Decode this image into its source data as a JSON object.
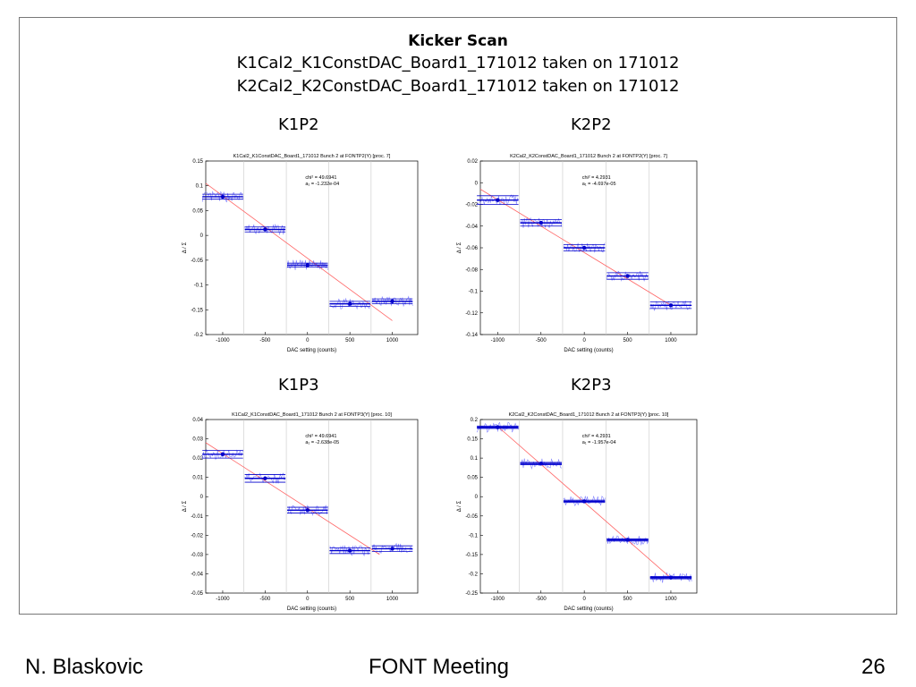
{
  "slide": {
    "title": "Kicker Scan",
    "subtitle_1": "K1Cal2_K1ConstDAC_Board1_171012 taken on 171012",
    "subtitle_2": "K2Cal2_K2ConstDAC_Board1_171012 taken on 171012",
    "footer_author": "N. Blaskovic",
    "footer_meeting": "FONT Meeting",
    "footer_page": "26",
    "panel_labels": [
      "K1P2",
      "K2P2",
      "K1P3",
      "K2P3"
    ]
  },
  "colors": {
    "step": "#0000cc",
    "raw": "#8080ff",
    "fit": "#ff6666",
    "grid": "#c8c8c8"
  },
  "chart_data": [
    {
      "type": "line",
      "title": "K1Cal2_K1ConstDAC_Board1_171012 Bunch 2 at FONTP2(Y) [proc. 7]",
      "xlabel": "DAC setting (counts)",
      "ylabel": "Δ / Σ",
      "xlim": [
        -1200,
        1300
      ],
      "ylim": [
        -0.2,
        0.15
      ],
      "xticks": [
        -1000,
        -500,
        0,
        500,
        1000
      ],
      "xtick_labels": [
        "-1000",
        "-500",
        "0",
        "500",
        "1000"
      ],
      "yticks": [
        -0.2,
        -0.15,
        -0.1,
        -0.05,
        0,
        0.05,
        0.1,
        0.15
      ],
      "ytick_labels": [
        "-0.2",
        "-0.15",
        "-0.1",
        "-0.05",
        "0",
        "0.05",
        "0.1",
        "0.15"
      ],
      "annotation_chi": "chi² = 49.6941",
      "annotation_a1": "a₁ = -1.232e-04",
      "points": [
        {
          "x": -1000,
          "y": 0.078,
          "err": 0.005
        },
        {
          "x": -500,
          "y": 0.012,
          "err": 0.005
        },
        {
          "x": 0,
          "y": -0.06,
          "err": 0.004
        },
        {
          "x": 500,
          "y": -0.138,
          "err": 0.005
        },
        {
          "x": 1000,
          "y": -0.133,
          "err": 0.005
        }
      ],
      "fit_line": {
        "x": [
          -1200,
          1000
        ],
        "y": [
          0.105,
          -0.172
        ]
      }
    },
    {
      "type": "line",
      "title": "K2Cal2_K2ConstDAC_Board1_171012 Bunch 2 at FONTP2(Y) [proc. 7]",
      "xlabel": "DAC setting (counts)",
      "ylabel": "Δ / Σ",
      "xlim": [
        -1200,
        1300
      ],
      "ylim": [
        -0.14,
        0.02
      ],
      "xticks": [
        -1000,
        -500,
        0,
        500,
        1000
      ],
      "xtick_labels": [
        "-1000",
        "-500",
        "0",
        "500",
        "1000"
      ],
      "yticks": [
        -0.14,
        -0.12,
        -0.1,
        -0.08,
        -0.06,
        -0.04,
        -0.02,
        0,
        0.02
      ],
      "ytick_labels": [
        "-0.14",
        "-0.12",
        "-0.1",
        "-0.08",
        "-0.06",
        "-0.04",
        "-0.02",
        "0",
        "0.02"
      ],
      "annotation_chi": "chi² = 4.2931",
      "annotation_a1": "a₁ = -4.697e-05",
      "points": [
        {
          "x": -1000,
          "y": -0.016,
          "err": 0.004
        },
        {
          "x": -500,
          "y": -0.037,
          "err": 0.003
        },
        {
          "x": 0,
          "y": -0.06,
          "err": 0.003
        },
        {
          "x": 500,
          "y": -0.086,
          "err": 0.003
        },
        {
          "x": 1000,
          "y": -0.113,
          "err": 0.003
        }
      ],
      "fit_line": {
        "x": [
          -1200,
          1000
        ],
        "y": [
          -0.006,
          -0.113
        ]
      }
    },
    {
      "type": "line",
      "title": "K1Cal2_K1ConstDAC_Board1_171012 Bunch 2 at FONTP3(Y) [proc. 10]",
      "xlabel": "DAC setting (counts)",
      "ylabel": "Δ / Σ",
      "xlim": [
        -1200,
        1300
      ],
      "ylim": [
        -0.05,
        0.04
      ],
      "xticks": [
        -1000,
        -500,
        0,
        500,
        1000
      ],
      "xtick_labels": [
        "-1000",
        "-500",
        "0",
        "500",
        "1000"
      ],
      "yticks": [
        -0.05,
        -0.04,
        -0.03,
        -0.02,
        -0.01,
        0,
        0.01,
        0.02,
        0.03,
        0.04
      ],
      "ytick_labels": [
        "-0.05",
        "-0.04",
        "-0.03",
        "-0.02",
        "-0.01",
        "0",
        "0.01",
        "0.02",
        "0.03",
        "0.04"
      ],
      "annotation_chi": "chi² = 49.6941",
      "annotation_a1": "a₁ = -2.638e-05",
      "points": [
        {
          "x": -1000,
          "y": 0.022,
          "err": 0.002
        },
        {
          "x": -500,
          "y": 0.0095,
          "err": 0.002
        },
        {
          "x": 0,
          "y": -0.007,
          "err": 0.0015
        },
        {
          "x": 500,
          "y": -0.028,
          "err": 0.0015
        },
        {
          "x": 1000,
          "y": -0.027,
          "err": 0.0015
        }
      ],
      "fit_line": {
        "x": [
          -1200,
          850
        ],
        "y": [
          0.028,
          -0.03
        ]
      }
    },
    {
      "type": "line",
      "title": "K2Cal2_K2ConstDAC_Board1_171012 Bunch 2 at FONTP3(Y) [proc. 10]",
      "xlabel": "DAC setting (counts)",
      "ylabel": "Δ / Σ",
      "xlim": [
        -1200,
        1300
      ],
      "ylim": [
        -0.25,
        0.2
      ],
      "xticks": [
        -1000,
        -500,
        0,
        500,
        1000
      ],
      "xtick_labels": [
        "-1000",
        "-500",
        "0",
        "500",
        "1000"
      ],
      "yticks": [
        -0.25,
        -0.2,
        -0.15,
        -0.1,
        -0.05,
        0,
        0.05,
        0.1,
        0.15,
        0.2
      ],
      "ytick_labels": [
        "-0.25",
        "-0.2",
        "-0.15",
        "-0.1",
        "-0.05",
        "0",
        "0.05",
        "0.1",
        "0.15",
        "0.2"
      ],
      "annotation_chi": "chi² = 4.2931",
      "annotation_a1": "a₁ = -1.957e-04",
      "points": [
        {
          "x": -1000,
          "y": 0.18,
          "err": 0.003
        },
        {
          "x": -500,
          "y": 0.086,
          "err": 0.003
        },
        {
          "x": 0,
          "y": -0.012,
          "err": 0.003
        },
        {
          "x": 500,
          "y": -0.112,
          "err": 0.003
        },
        {
          "x": 1000,
          "y": -0.21,
          "err": 0.003
        }
      ],
      "fit_line": {
        "x": [
          -1000,
          1000
        ],
        "y": [
          0.182,
          -0.211
        ]
      }
    }
  ]
}
